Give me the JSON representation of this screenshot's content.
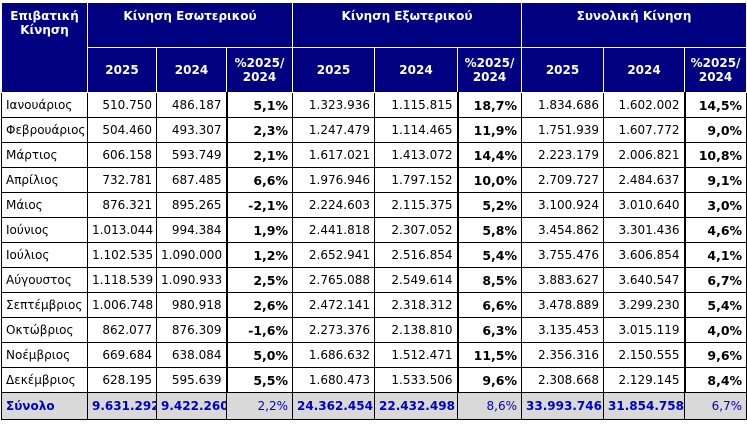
{
  "header": {
    "corner": [
      "Επιβατική",
      "Κίνηση"
    ],
    "groups": [
      "Κίνηση Εσωτερικού",
      "Κίνηση Εξωτερικού",
      "Συνολική Κίνηση"
    ],
    "sub": [
      "2025",
      "2024",
      "%2025/",
      "2024"
    ]
  },
  "rows": [
    [
      "Ιανουάριος",
      "510.750",
      "486.187",
      "5,1%",
      "1.323.936",
      "1.115.815",
      "18,7%",
      "1.834.686",
      "1.602.002",
      "14,5%"
    ],
    [
      "Φεβρουάριος",
      "504.460",
      "493.307",
      "2,3%",
      "1.247.479",
      "1.114.465",
      "11,9%",
      "1.751.939",
      "1.607.772",
      "9,0%"
    ],
    [
      "Μάρτιος",
      "606.158",
      "593.749",
      "2,1%",
      "1.617.021",
      "1.413.072",
      "14,4%",
      "2.223.179",
      "2.006.821",
      "10,8%"
    ],
    [
      "Απρίλιος",
      "732.781",
      "687.485",
      "6,6%",
      "1.976.946",
      "1.797.152",
      "10,0%",
      "2.709.727",
      "2.484.637",
      "9,1%"
    ],
    [
      "Μάιος",
      "876.321",
      "895.265",
      "-2,1%",
      "2.224.603",
      "2.115.375",
      "5,2%",
      "3.100.924",
      "3.010.640",
      "3,0%"
    ],
    [
      "Ιούνιος",
      "1.013.044",
      "994.384",
      "1,9%",
      "2.441.818",
      "2.307.052",
      "5,8%",
      "3.454.862",
      "3.301.436",
      "4,6%"
    ],
    [
      "Ιούλιος",
      "1.102.535",
      "1.090.000",
      "1,2%",
      "2.652.941",
      "2.516.854",
      "5,4%",
      "3.755.476",
      "3.606.854",
      "4,1%"
    ],
    [
      "Αύγουστος",
      "1.118.539",
      "1.090.933",
      "2,5%",
      "2.765.088",
      "2.549.614",
      "8,5%",
      "3.883.627",
      "3.640.547",
      "6,7%"
    ],
    [
      "Σεπτέμβριος",
      "1.006.748",
      "980.918",
      "2,6%",
      "2.472.141",
      "2.318.312",
      "6,6%",
      "3.478.889",
      "3.299.230",
      "5,4%"
    ],
    [
      "Οκτώβριος",
      "862.077",
      "876.309",
      "-1,6%",
      "2.273.376",
      "2.138.810",
      "6,3%",
      "3.135.453",
      "3.015.119",
      "4,0%"
    ],
    [
      "Νοέμβριος",
      "669.684",
      "638.084",
      "5,0%",
      "1.686.632",
      "1.512.471",
      "11,5%",
      "2.356.316",
      "2.150.555",
      "9,6%"
    ],
    [
      "Δεκέμβριος",
      "628.195",
      "595.639",
      "5,5%",
      "1.680.473",
      "1.533.506",
      "9,6%",
      "2.308.668",
      "2.129.145",
      "8,4%"
    ]
  ],
  "total": [
    "Σύνολο",
    "9.631.292",
    "9.422.260",
    "2,2%",
    "24.362.454",
    "22.432.498",
    "8,6%",
    "33.993.746",
    "31.854.758",
    "6,7%"
  ]
}
